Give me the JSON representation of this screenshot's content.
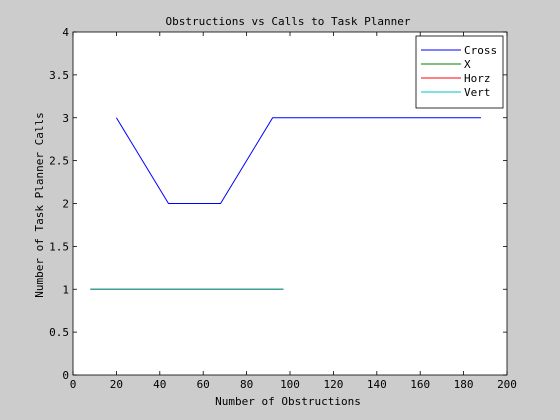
{
  "chart_data": {
    "type": "line",
    "title": "Obstructions vs Calls to Task Planner",
    "xlabel": "Number of Obstructions",
    "ylabel": "Number of Task Planner Calls",
    "xlim": [
      0,
      200
    ],
    "ylim": [
      0,
      4
    ],
    "xticks": [
      0,
      20,
      40,
      60,
      80,
      100,
      120,
      140,
      160,
      180,
      200
    ],
    "yticks": [
      0,
      0.5,
      1,
      1.5,
      2,
      2.5,
      3,
      3.5,
      4
    ],
    "ytick_labels": [
      "0",
      "0.5",
      "1",
      "1.5",
      "2",
      "2.5",
      "3",
      "3.5",
      "4"
    ],
    "grid": false,
    "legend_position": "top-right",
    "series": [
      {
        "name": "Cross",
        "color": "#0000ff",
        "x": [
          20,
          44,
          68,
          92,
          116,
          140,
          164,
          188
        ],
        "y": [
          3,
          2,
          2,
          3,
          3,
          3,
          3,
          3
        ]
      },
      {
        "name": "X",
        "color": "#008000",
        "x": [
          8,
          97
        ],
        "y": [
          1,
          1
        ]
      },
      {
        "name": "Horz",
        "color": "#ff0000",
        "x": [
          8,
          97
        ],
        "y": [
          1,
          1
        ]
      },
      {
        "name": "Vert",
        "color": "#00bfbf",
        "x": [
          8,
          97
        ],
        "y": [
          1,
          1
        ]
      }
    ]
  }
}
